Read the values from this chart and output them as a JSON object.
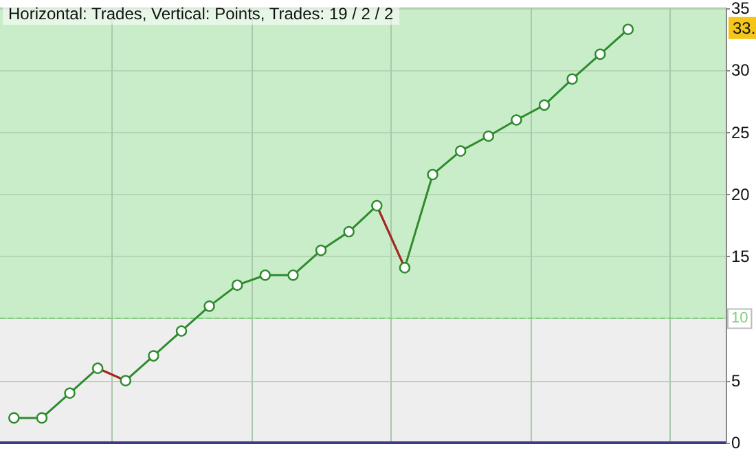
{
  "chart_data": {
    "type": "line",
    "title": "Horizontal: Trades, Vertical: Points, Trades: 19 / 2 / 2",
    "categories": [
      null,
      null,
      null,
      null,
      null,
      null,
      null,
      null,
      null,
      null,
      null,
      null,
      null,
      null,
      null,
      null,
      null,
      null,
      null,
      null,
      null,
      null,
      null
    ],
    "marker": "circle",
    "series": [
      {
        "color": "#2e8b2e",
        "values": [
          2.0,
          2.0,
          4.0,
          6.0,
          5.0,
          7.0,
          9.0,
          11.0,
          12.7,
          13.5,
          13.5,
          15.5,
          17.0,
          19.1,
          14.1,
          21.6,
          23.5,
          24.7,
          26.0,
          27.2,
          29.3,
          31.3,
          33.3
        ]
      },
      {
        "color": "#b22222",
        "marker": "none",
        "values": [
          null,
          null,
          null,
          6.0,
          5.0,
          null,
          null,
          null,
          null,
          null,
          null,
          null,
          null,
          19.1,
          14.1,
          null,
          null,
          null,
          null,
          null,
          null,
          null,
          null
        ]
      }
    ],
    "ylim": [
      0,
      35
    ],
    "yticks": [
      0,
      5,
      10,
      15,
      20,
      25,
      30,
      35
    ],
    "tick_labels": "y",
    "grid": true,
    "bands": [
      {
        "axis": "y",
        "from": 10,
        "to": 35,
        "color": "#c9edc9"
      },
      {
        "axis": "y",
        "from": 0,
        "to": 10,
        "color": "#eeeeee"
      }
    ],
    "ref_lines": [
      {
        "axis": "y",
        "value": 10,
        "label": "10",
        "color": "#7fcf7f",
        "line_style": "dashed"
      }
    ],
    "annotations": [
      "33."
    ]
  }
}
